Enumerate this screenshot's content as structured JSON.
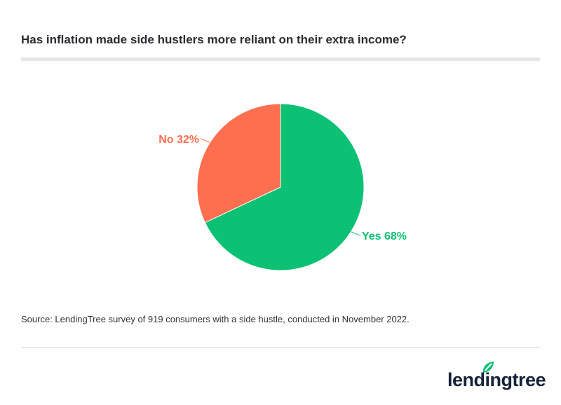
{
  "chart_data": {
    "type": "pie",
    "title": "Has inflation made side hustlers more reliant on their extra income?",
    "slices": [
      {
        "label": "Yes 68%",
        "value": 68,
        "color": "#0dc174"
      },
      {
        "label": "No 32%",
        "value": 32,
        "color": "#fe6f4f"
      }
    ],
    "start_angle": "top",
    "direction": "clockwise"
  },
  "source": "Source: LendingTree survey of 919 consumers with a side hustle, conducted in November 2022.",
  "logo": {
    "text": "lendingtree",
    "leaf_color": "#0dc174",
    "text_color": "#17233a"
  }
}
